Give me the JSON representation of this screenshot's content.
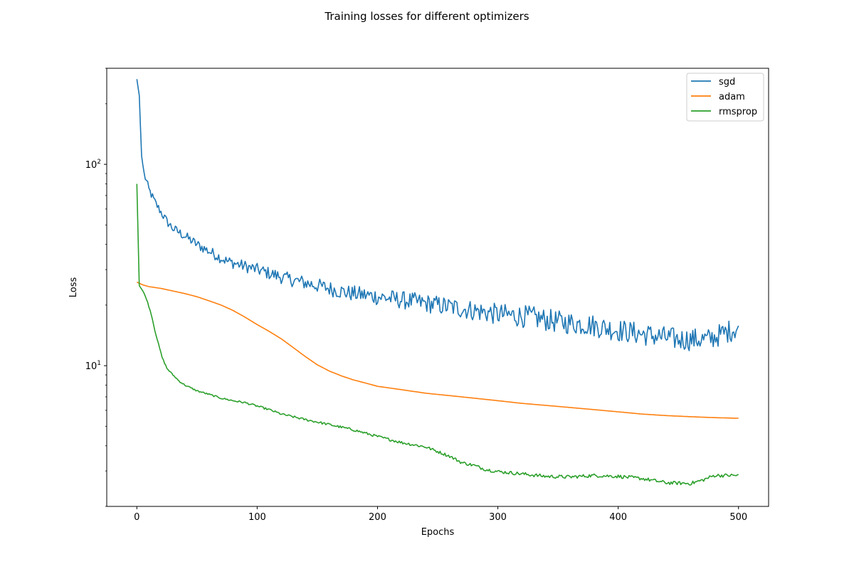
{
  "chart_data": {
    "type": "line",
    "title": "Training losses for different optimizers",
    "xlabel": "Epochs",
    "ylabel": "Loss",
    "xlim": [
      -25,
      525
    ],
    "ylim": [
      2.0,
      300
    ],
    "yscale": "log",
    "grid": false,
    "legend_position": "top-right",
    "x_ticks": [
      0,
      100,
      200,
      300,
      400,
      500
    ],
    "y_ticks": [
      {
        "base": "10",
        "exp": "1",
        "value": 10
      },
      {
        "base": "10",
        "exp": "2",
        "value": 100
      }
    ],
    "series": [
      {
        "name": "sgd",
        "color": "#1f77b4",
        "noise": 0.13,
        "points": [
          [
            0,
            265
          ],
          [
            2,
            220
          ],
          [
            4,
            110
          ],
          [
            6,
            90
          ],
          [
            10,
            75
          ],
          [
            15,
            65
          ],
          [
            20,
            58
          ],
          [
            25,
            52
          ],
          [
            30,
            48
          ],
          [
            40,
            44
          ],
          [
            50,
            40
          ],
          [
            60,
            37
          ],
          [
            75,
            33
          ],
          [
            100,
            30
          ],
          [
            125,
            27
          ],
          [
            150,
            25
          ],
          [
            175,
            23
          ],
          [
            200,
            22
          ],
          [
            225,
            21
          ],
          [
            250,
            20
          ],
          [
            275,
            19
          ],
          [
            300,
            18
          ],
          [
            325,
            17.5
          ],
          [
            350,
            16.5
          ],
          [
            375,
            16
          ],
          [
            400,
            15
          ],
          [
            425,
            14.2
          ],
          [
            450,
            13.5
          ],
          [
            475,
            13.5
          ],
          [
            500,
            15.5
          ]
        ]
      },
      {
        "name": "adam",
        "color": "#ff7f0e",
        "points": [
          [
            0,
            26
          ],
          [
            5,
            25.2
          ],
          [
            10,
            24.7
          ],
          [
            20,
            24.2
          ],
          [
            30,
            23.5
          ],
          [
            40,
            22.8
          ],
          [
            50,
            22
          ],
          [
            60,
            21
          ],
          [
            70,
            20
          ],
          [
            80,
            18.8
          ],
          [
            90,
            17.4
          ],
          [
            100,
            16
          ],
          [
            110,
            14.8
          ],
          [
            120,
            13.6
          ],
          [
            130,
            12.3
          ],
          [
            140,
            11.1
          ],
          [
            150,
            10.1
          ],
          [
            160,
            9.4
          ],
          [
            170,
            8.9
          ],
          [
            180,
            8.5
          ],
          [
            190,
            8.2
          ],
          [
            200,
            7.9
          ],
          [
            220,
            7.6
          ],
          [
            240,
            7.3
          ],
          [
            260,
            7.1
          ],
          [
            280,
            6.9
          ],
          [
            300,
            6.7
          ],
          [
            320,
            6.5
          ],
          [
            340,
            6.35
          ],
          [
            360,
            6.2
          ],
          [
            380,
            6.05
          ],
          [
            400,
            5.9
          ],
          [
            420,
            5.75
          ],
          [
            440,
            5.65
          ],
          [
            460,
            5.58
          ],
          [
            480,
            5.52
          ],
          [
            500,
            5.48
          ]
        ]
      },
      {
        "name": "rmsprop",
        "color": "#2ca02c",
        "noise": 0.02,
        "points": [
          [
            0,
            80
          ],
          [
            2,
            25
          ],
          [
            5,
            23.5
          ],
          [
            8,
            21.5
          ],
          [
            12,
            18
          ],
          [
            15,
            15
          ],
          [
            18,
            12.8
          ],
          [
            21,
            11
          ],
          [
            25,
            9.7
          ],
          [
            30,
            9
          ],
          [
            35,
            8.4
          ],
          [
            40,
            8
          ],
          [
            50,
            7.5
          ],
          [
            60,
            7.2
          ],
          [
            70,
            6.9
          ],
          [
            80,
            6.7
          ],
          [
            90,
            6.55
          ],
          [
            100,
            6.3
          ],
          [
            110,
            6.05
          ],
          [
            120,
            5.75
          ],
          [
            140,
            5.4
          ],
          [
            160,
            5.1
          ],
          [
            180,
            4.8
          ],
          [
            200,
            4.45
          ],
          [
            220,
            4.15
          ],
          [
            240,
            3.95
          ],
          [
            260,
            3.55
          ],
          [
            270,
            3.3
          ],
          [
            280,
            3.2
          ],
          [
            290,
            3.05
          ],
          [
            300,
            2.98
          ],
          [
            320,
            2.9
          ],
          [
            340,
            2.82
          ],
          [
            360,
            2.8
          ],
          [
            380,
            2.85
          ],
          [
            400,
            2.82
          ],
          [
            420,
            2.75
          ],
          [
            440,
            2.62
          ],
          [
            460,
            2.6
          ],
          [
            470,
            2.7
          ],
          [
            480,
            2.85
          ],
          [
            500,
            2.85
          ]
        ]
      }
    ]
  }
}
